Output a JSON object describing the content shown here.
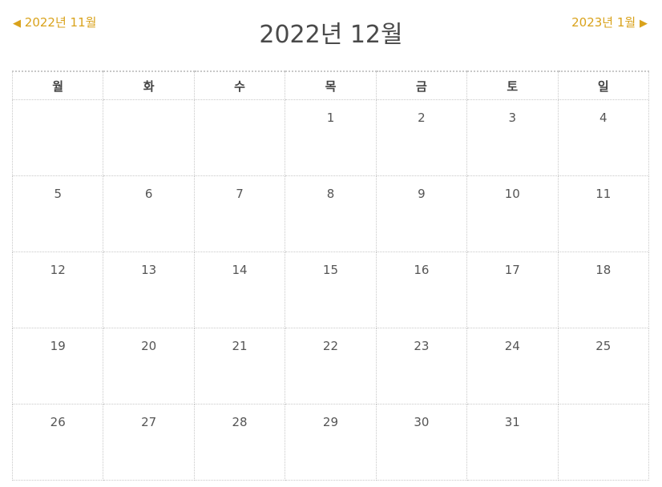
{
  "nav": {
    "prev_arrow": "◀",
    "prev_label": "2022년 11월",
    "next_label": "2023년 1월",
    "next_arrow": "▶"
  },
  "title": "2022년 12월",
  "weekdays": [
    "월",
    "화",
    "수",
    "목",
    "금",
    "토",
    "일"
  ],
  "weeks": [
    [
      "",
      "",
      "",
      "1",
      "2",
      "3",
      "4"
    ],
    [
      "5",
      "6",
      "7",
      "8",
      "9",
      "10",
      "11"
    ],
    [
      "12",
      "13",
      "14",
      "15",
      "16",
      "17",
      "18"
    ],
    [
      "19",
      "20",
      "21",
      "22",
      "23",
      "24",
      "25"
    ],
    [
      "26",
      "27",
      "28",
      "29",
      "30",
      "31",
      ""
    ]
  ],
  "colors": {
    "nav_accent": "#d9a21b",
    "title": "#4a4a4a",
    "border": "#c8c8c8"
  }
}
